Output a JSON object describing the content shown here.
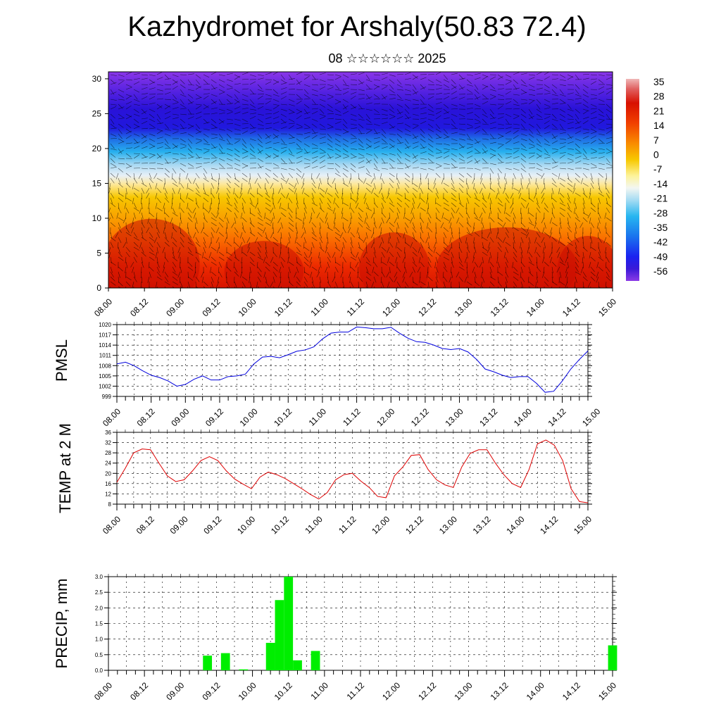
{
  "header": {
    "title": "Kazhydromet for Arshaly(50.83 72.4)",
    "subtitle": "08 ☆☆☆☆☆☆ 2025"
  },
  "x_tick_labels": [
    "08.00",
    "08.12",
    "09.00",
    "09.12",
    "10.00",
    "10.12",
    "11.00",
    "11.12",
    "12.00",
    "12.12",
    "13.00",
    "13.12",
    "14.00",
    "14.12",
    "15.00"
  ],
  "chart_data": [
    {
      "type": "heatmap",
      "title": "",
      "xlabel": "",
      "ylabel": "",
      "y_ticks": [
        0,
        5,
        10,
        15,
        20,
        25,
        30
      ],
      "ylim": [
        0,
        31
      ],
      "colorbar": {
        "labels": [
          "35",
          "28",
          "21",
          "14",
          "7",
          "0",
          "-7",
          "-14",
          "-21",
          "-28",
          "-35",
          "-42",
          "-49",
          "-56"
        ],
        "range": [
          -63,
          42
        ]
      },
      "wind_barbs": true,
      "notes": "vertical temperature cross-section with wind barbs"
    },
    {
      "type": "line",
      "ylabel": "PMSL",
      "ylim": [
        999,
        1020
      ],
      "y_ticks": [
        999,
        1002,
        1005,
        1008,
        1011,
        1014,
        1017,
        1020
      ],
      "color": "#0000dd",
      "grid": true,
      "x_start": "08.00",
      "step_hours": 3,
      "values": [
        1008.5,
        1009,
        1008,
        1006.5,
        1005.2,
        1004.5,
        1003.5,
        1002,
        1002.5,
        1004,
        1005,
        1003.8,
        1003.8,
        1004.8,
        1005,
        1005.5,
        1008.5,
        1010.5,
        1010.7,
        1010.3,
        1011.2,
        1012.2,
        1012.6,
        1013.5,
        1015.8,
        1017.5,
        1017.8,
        1017.8,
        1019.3,
        1019.1,
        1018.8,
        1018.8,
        1019.2,
        1017.5,
        1016,
        1015,
        1014.8,
        1014,
        1013,
        1012.7,
        1013,
        1012,
        1009.8,
        1007,
        1006.2,
        1005.2,
        1004.5,
        1004.8,
        1004.8,
        1002.8,
        1000.2,
        1000.5,
        1003.5,
        1007,
        1009.8,
        1012.3
      ]
    },
    {
      "type": "line",
      "ylabel": "TEMP at 2 M",
      "ylim": [
        8,
        36
      ],
      "y_ticks": [
        8,
        12,
        16,
        20,
        24,
        28,
        32,
        36
      ],
      "color": "#dd0000",
      "grid": true,
      "x_start": "08.00",
      "step_hours": 3,
      "values": [
        16.5,
        22,
        28,
        29.5,
        29.2,
        24,
        19,
        16.8,
        17.5,
        21,
        25,
        26.5,
        25,
        21,
        17.8,
        15.8,
        14,
        18.5,
        20.5,
        19.5,
        18,
        16,
        14,
        11.8,
        10,
        12.5,
        17.5,
        19.5,
        20,
        17,
        14.5,
        11,
        10.5,
        19,
        22.5,
        27,
        27.3,
        21.5,
        17.5,
        15.5,
        14.5,
        22.5,
        27.8,
        29.2,
        29.2,
        24,
        19.5,
        16,
        14.5,
        21.5,
        31.5,
        33,
        31,
        25,
        14,
        9,
        8.5
      ]
    },
    {
      "type": "bar",
      "ylabel": "PRECIP, mm",
      "ylim": [
        0,
        3.0
      ],
      "y_ticks": [
        0.0,
        0.5,
        1.0,
        1.5,
        2.0,
        2.5,
        3.0
      ],
      "color": "#00ee00",
      "grid": true,
      "x_start": "08.00",
      "step_hours": 3,
      "values": [
        0,
        0,
        0,
        0,
        0,
        0,
        0,
        0,
        0,
        0,
        0,
        0.47,
        0,
        0.55,
        0,
        0.03,
        0,
        0,
        0.88,
        2.25,
        3.0,
        0.32,
        0,
        0.62,
        0,
        0,
        0,
        0,
        0,
        0,
        0,
        0,
        0,
        0,
        0,
        0,
        0,
        0,
        0,
        0,
        0,
        0,
        0,
        0,
        0,
        0,
        0,
        0,
        0,
        0,
        0,
        0,
        0,
        0,
        0,
        0,
        0.8
      ]
    }
  ]
}
